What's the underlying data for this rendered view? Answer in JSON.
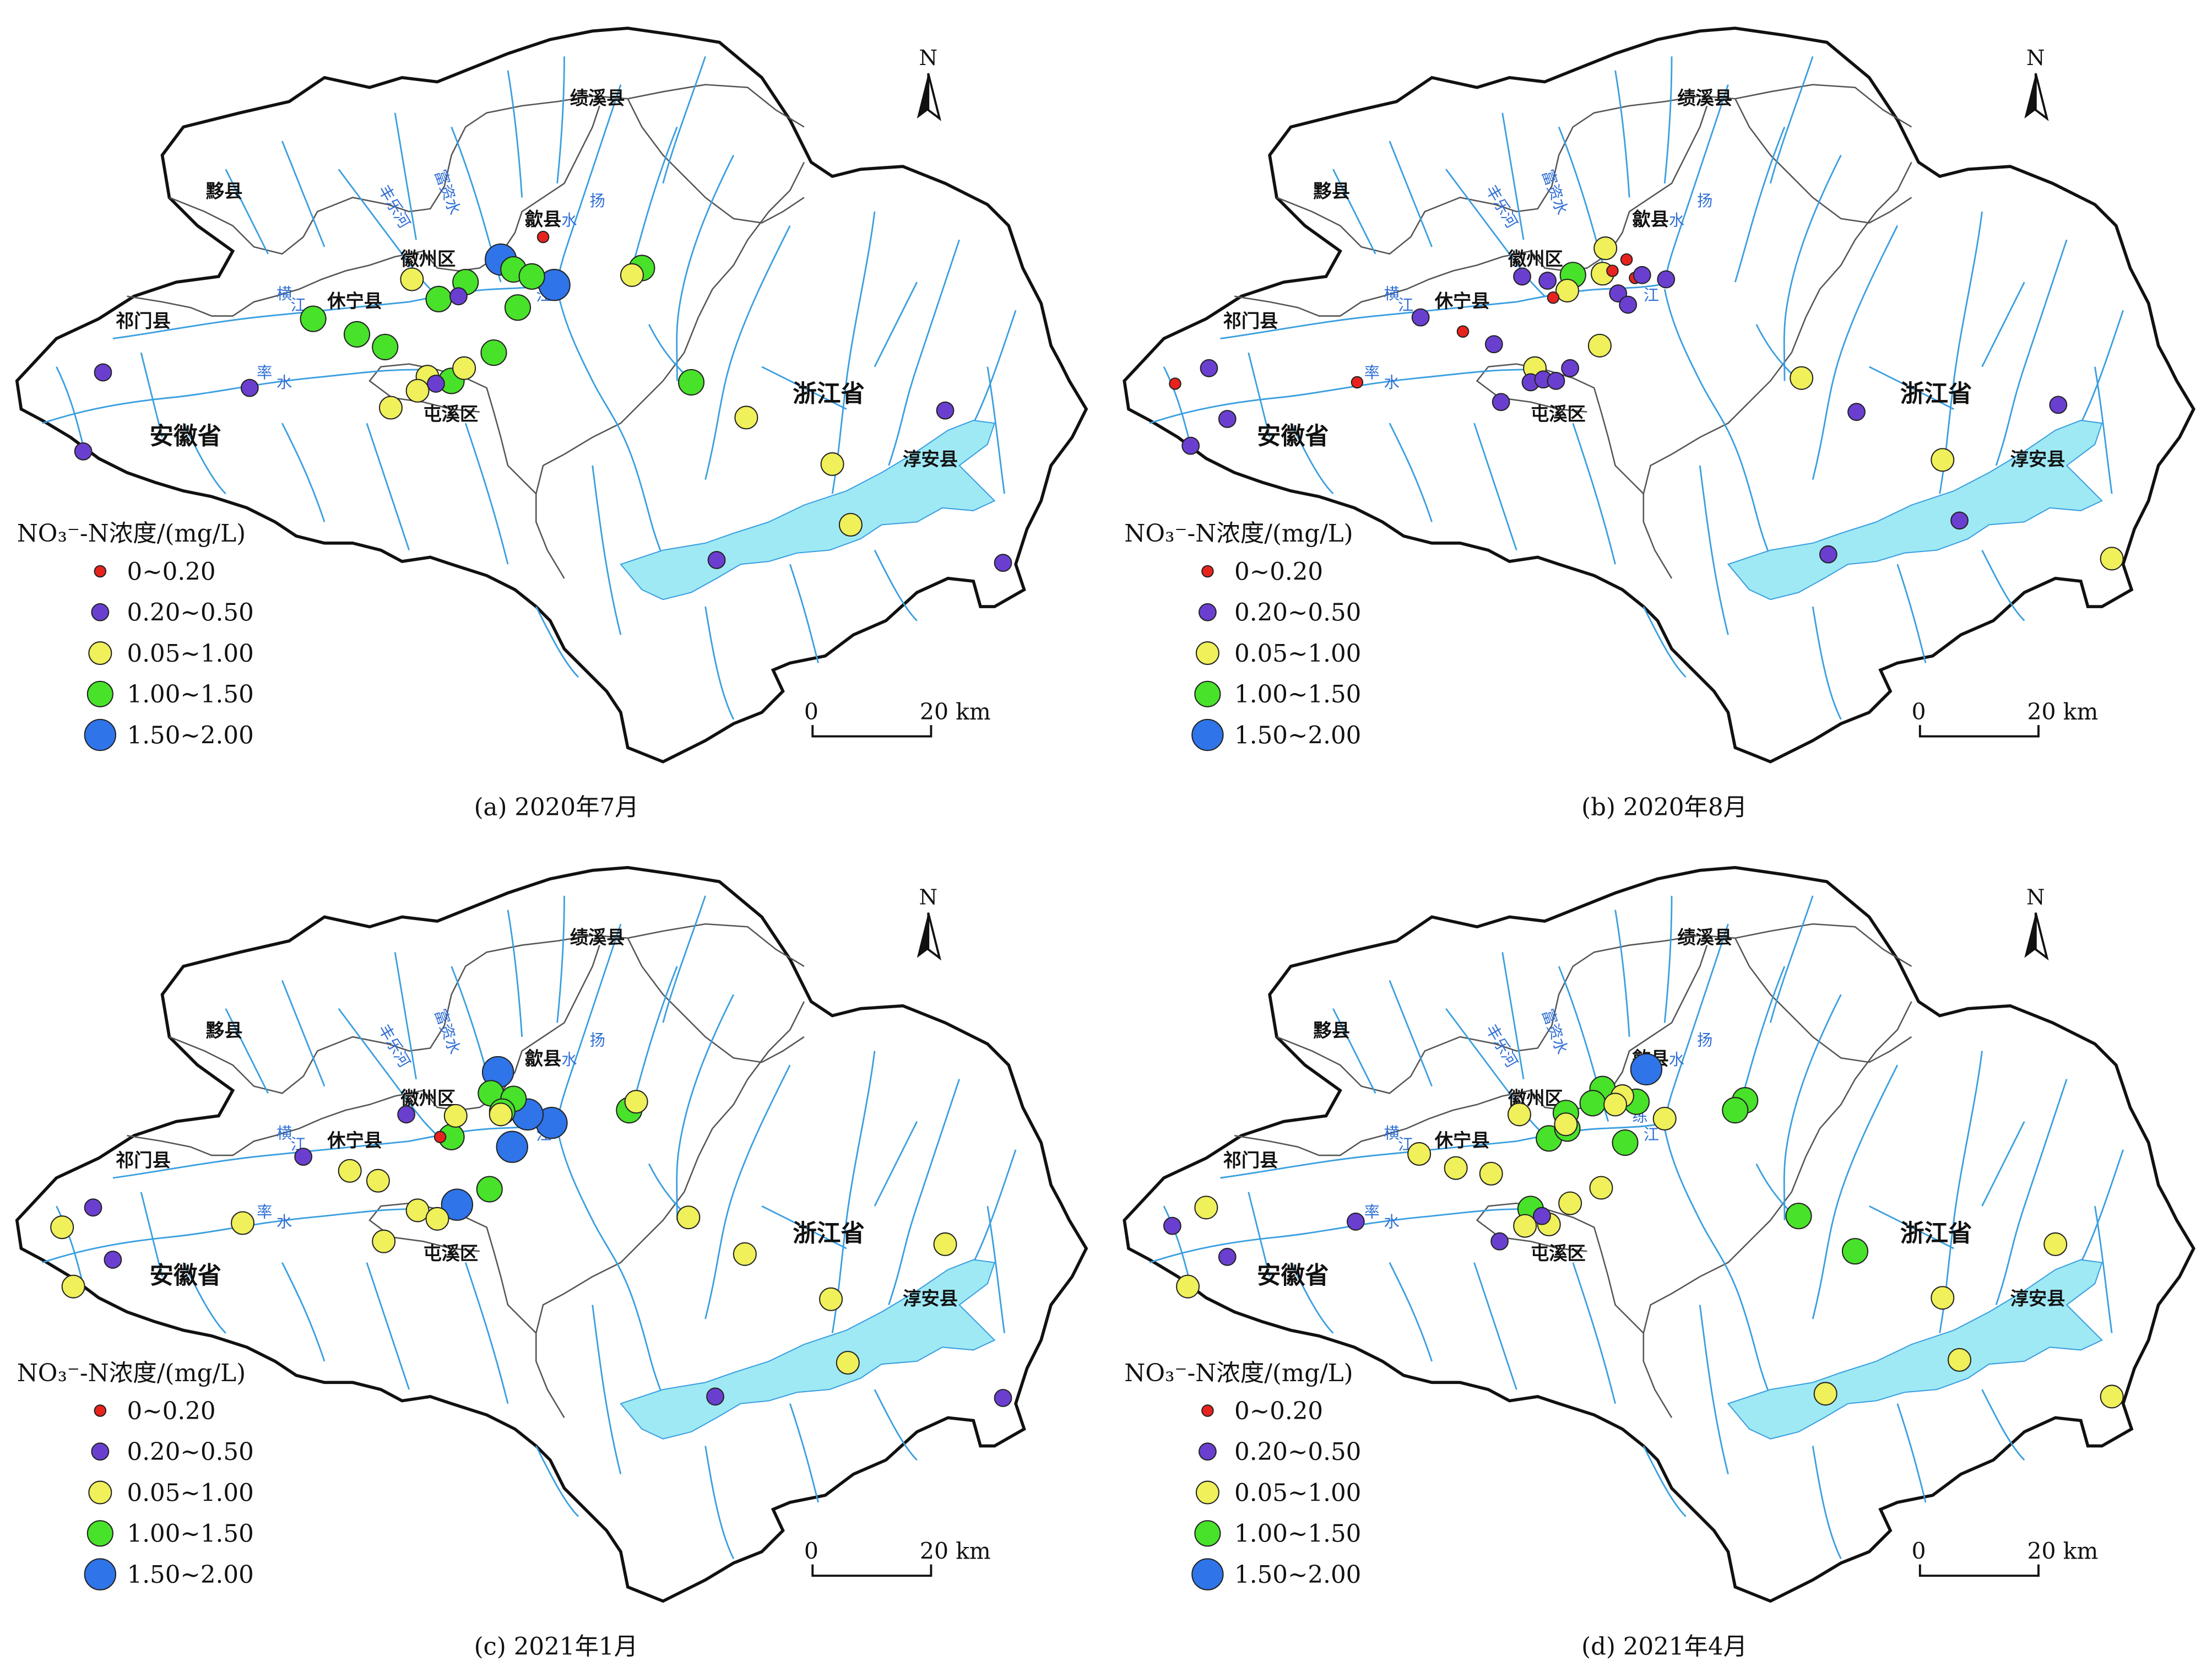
{
  "panels": [
    {
      "id": "a",
      "caption": "(a)  2020年7月",
      "points": [
        [
          "blue",
          355,
          184
        ],
        [
          "blue",
          393,
          202
        ],
        [
          "green",
          364,
          191
        ],
        [
          "green",
          377,
          196
        ],
        [
          "green",
          367,
          218
        ],
        [
          "green",
          330,
          200
        ],
        [
          "green",
          311,
          212
        ],
        [
          "green",
          222,
          226
        ],
        [
          "green",
          253,
          237
        ],
        [
          "green",
          273,
          246
        ],
        [
          "green",
          350,
          250
        ],
        [
          "green",
          320,
          270
        ],
        [
          "green",
          490,
          271
        ],
        [
          "green",
          455,
          190
        ],
        [
          "yellow",
          448,
          195
        ],
        [
          "yellow",
          292,
          198
        ],
        [
          "yellow",
          303,
          267
        ],
        [
          "yellow",
          329,
          261
        ],
        [
          "yellow",
          296,
          277
        ],
        [
          "yellow",
          277,
          289
        ],
        [
          "yellow",
          529,
          296
        ],
        [
          "yellow",
          590,
          329
        ],
        [
          "yellow",
          603,
          372
        ],
        [
          "purple",
          325,
          210
        ],
        [
          "purple",
          309,
          272
        ],
        [
          "purple",
          177,
          275
        ],
        [
          "purple",
          73,
          264
        ],
        [
          "purple",
          59,
          320
        ],
        [
          "purple",
          670,
          291
        ],
        [
          "purple",
          508,
          397
        ],
        [
          "purple",
          711,
          399
        ],
        [
          "red",
          385,
          168
        ]
      ]
    },
    {
      "id": "b",
      "caption": "(b)  2020年8月",
      "points": [
        [
          "green",
          1115,
          195
        ],
        [
          "yellow",
          1138,
          176
        ],
        [
          "yellow",
          1136,
          194
        ],
        [
          "yellow",
          1111,
          206
        ],
        [
          "yellow",
          1134,
          245
        ],
        [
          "yellow",
          1088,
          261
        ],
        [
          "yellow",
          1277,
          268
        ],
        [
          "yellow",
          1377,
          326
        ],
        [
          "yellow",
          1497,
          396
        ],
        [
          "red",
          1153,
          184
        ],
        [
          "red",
          1143,
          192
        ],
        [
          "red",
          1159,
          197
        ],
        [
          "red",
          1101,
          211
        ],
        [
          "red",
          1037,
          235
        ],
        [
          "red",
          962,
          271
        ],
        [
          "red",
          833,
          272
        ],
        [
          "purple",
          1079,
          196
        ],
        [
          "purple",
          1097,
          199
        ],
        [
          "purple",
          1147,
          208
        ],
        [
          "purple",
          1164,
          195
        ],
        [
          "purple",
          1181,
          198
        ],
        [
          "purple",
          1154,
          216
        ],
        [
          "purple",
          1007,
          225
        ],
        [
          "purple",
          1059,
          244
        ],
        [
          "purple",
          1085,
          271
        ],
        [
          "purple",
          1094,
          269
        ],
        [
          "purple",
          1103,
          270
        ],
        [
          "purple",
          1113,
          261
        ],
        [
          "purple",
          1064,
          285
        ],
        [
          "purple",
          857,
          261
        ],
        [
          "purple",
          870,
          297
        ],
        [
          "purple",
          844,
          316
        ],
        [
          "purple",
          1316,
          292
        ],
        [
          "purple",
          1459,
          287
        ],
        [
          "purple",
          1389,
          369
        ],
        [
          "purple",
          1296,
          393
        ]
      ]
    },
    {
      "id": "c",
      "caption": "(c)  2021年1月",
      "points": [
        [
          "blue",
          353,
          760
        ],
        [
          "blue",
          391,
          796
        ],
        [
          "blue",
          363,
          813
        ],
        [
          "blue",
          324,
          854
        ],
        [
          "blue",
          374,
          790
        ],
        [
          "green",
          348,
          775
        ],
        [
          "green",
          364,
          779
        ],
        [
          "green",
          356,
          788
        ],
        [
          "green",
          446,
          787
        ],
        [
          "green",
          320,
          806
        ],
        [
          "green",
          347,
          843
        ],
        [
          "yellow",
          451,
          781
        ],
        [
          "yellow",
          355,
          790
        ],
        [
          "yellow",
          323,
          791
        ],
        [
          "yellow",
          248,
          830
        ],
        [
          "yellow",
          268,
          837
        ],
        [
          "yellow",
          296,
          858
        ],
        [
          "yellow",
          310,
          864
        ],
        [
          "yellow",
          272,
          880
        ],
        [
          "yellow",
          172,
          867
        ],
        [
          "yellow",
          44,
          870
        ],
        [
          "yellow",
          52,
          912
        ],
        [
          "yellow",
          488,
          863
        ],
        [
          "yellow",
          528,
          889
        ],
        [
          "yellow",
          670,
          882
        ],
        [
          "yellow",
          589,
          921
        ],
        [
          "yellow",
          601,
          966
        ],
        [
          "purple",
          288,
          790
        ],
        [
          "purple",
          215,
          820
        ],
        [
          "purple",
          66,
          856
        ],
        [
          "purple",
          80,
          893
        ],
        [
          "purple",
          507,
          990
        ],
        [
          "purple",
          711,
          991
        ],
        [
          "red",
          312,
          806
        ]
      ]
    },
    {
      "id": "d",
      "caption": "(d)  2021年4月",
      "points": [
        [
          "blue",
          1167,
          758
        ],
        [
          "green",
          1136,
          772
        ],
        [
          "green",
          1129,
          782
        ],
        [
          "green",
          1110,
          789
        ],
        [
          "green",
          1160,
          781
        ],
        [
          "green",
          1098,
          807
        ],
        [
          "green",
          1111,
          800
        ],
        [
          "green",
          1152,
          810
        ],
        [
          "green",
          1237,
          780
        ],
        [
          "green",
          1230,
          787
        ],
        [
          "green",
          1275,
          862
        ],
        [
          "green",
          1315,
          887
        ],
        [
          "green",
          1085,
          857
        ],
        [
          "yellow",
          1150,
          777
        ],
        [
          "yellow",
          1145,
          783
        ],
        [
          "yellow",
          1077,
          790
        ],
        [
          "yellow",
          1110,
          797
        ],
        [
          "yellow",
          1180,
          793
        ],
        [
          "yellow",
          1057,
          832
        ],
        [
          "yellow",
          1006,
          818
        ],
        [
          "yellow",
          1032,
          828
        ],
        [
          "yellow",
          1135,
          842
        ],
        [
          "yellow",
          1113,
          853
        ],
        [
          "yellow",
          1098,
          868
        ],
        [
          "yellow",
          1081,
          869
        ],
        [
          "yellow",
          855,
          856
        ],
        [
          "yellow",
          842,
          912
        ],
        [
          "yellow",
          1457,
          882
        ],
        [
          "yellow",
          1377,
          920
        ],
        [
          "yellow",
          1389,
          964
        ],
        [
          "yellow",
          1294,
          988
        ],
        [
          "yellow",
          1497,
          990
        ],
        [
          "purple",
          1093,
          862
        ],
        [
          "purple",
          1063,
          880
        ],
        [
          "purple",
          961,
          866
        ],
        [
          "purple",
          831,
          869
        ],
        [
          "purple",
          870,
          891
        ]
      ]
    }
  ],
  "places": {
    "jixi": "绩溪县",
    "yixian": "黟县",
    "shexian": "歙县",
    "huizhou": "徽州区",
    "xiuning": "休宁县",
    "qimen": "祁门县",
    "tunxi": "屯溪区",
    "anhui": "安徽省",
    "zhejiang": "浙江省",
    "chunan": "淳安县"
  },
  "rivers": {
    "fengle": "丰乐河",
    "fuzi": "富资水",
    "yang": "扬",
    "shui": "水",
    "lian": "练",
    "jiang_lian": "江",
    "heng": "横",
    "jiang_heng": "江",
    "lv": "率",
    "lv_shui": "水"
  },
  "legend": {
    "title": "NO₃⁻-N浓度/(mg/L)",
    "items": [
      {
        "key": "red",
        "label": "0~0.20"
      },
      {
        "key": "purple",
        "label": "0.20~0.50"
      },
      {
        "key": "yellow",
        "label": "0.05~1.00"
      },
      {
        "key": "green",
        "label": "1.00~1.50"
      },
      {
        "key": "blue",
        "label": "1.50~2.00"
      }
    ]
  },
  "scalebar": {
    "start": "0",
    "end": "20 km"
  },
  "north": "N",
  "colors": {
    "red": "#e8231e",
    "purple": "#6a3fd0",
    "yellow": "#eff05a",
    "green": "#48e22a",
    "blue": "#2f74e8",
    "river": "#3a9fe0",
    "lake": "#9fe9f4",
    "border": "#111111",
    "county": "#555555"
  }
}
